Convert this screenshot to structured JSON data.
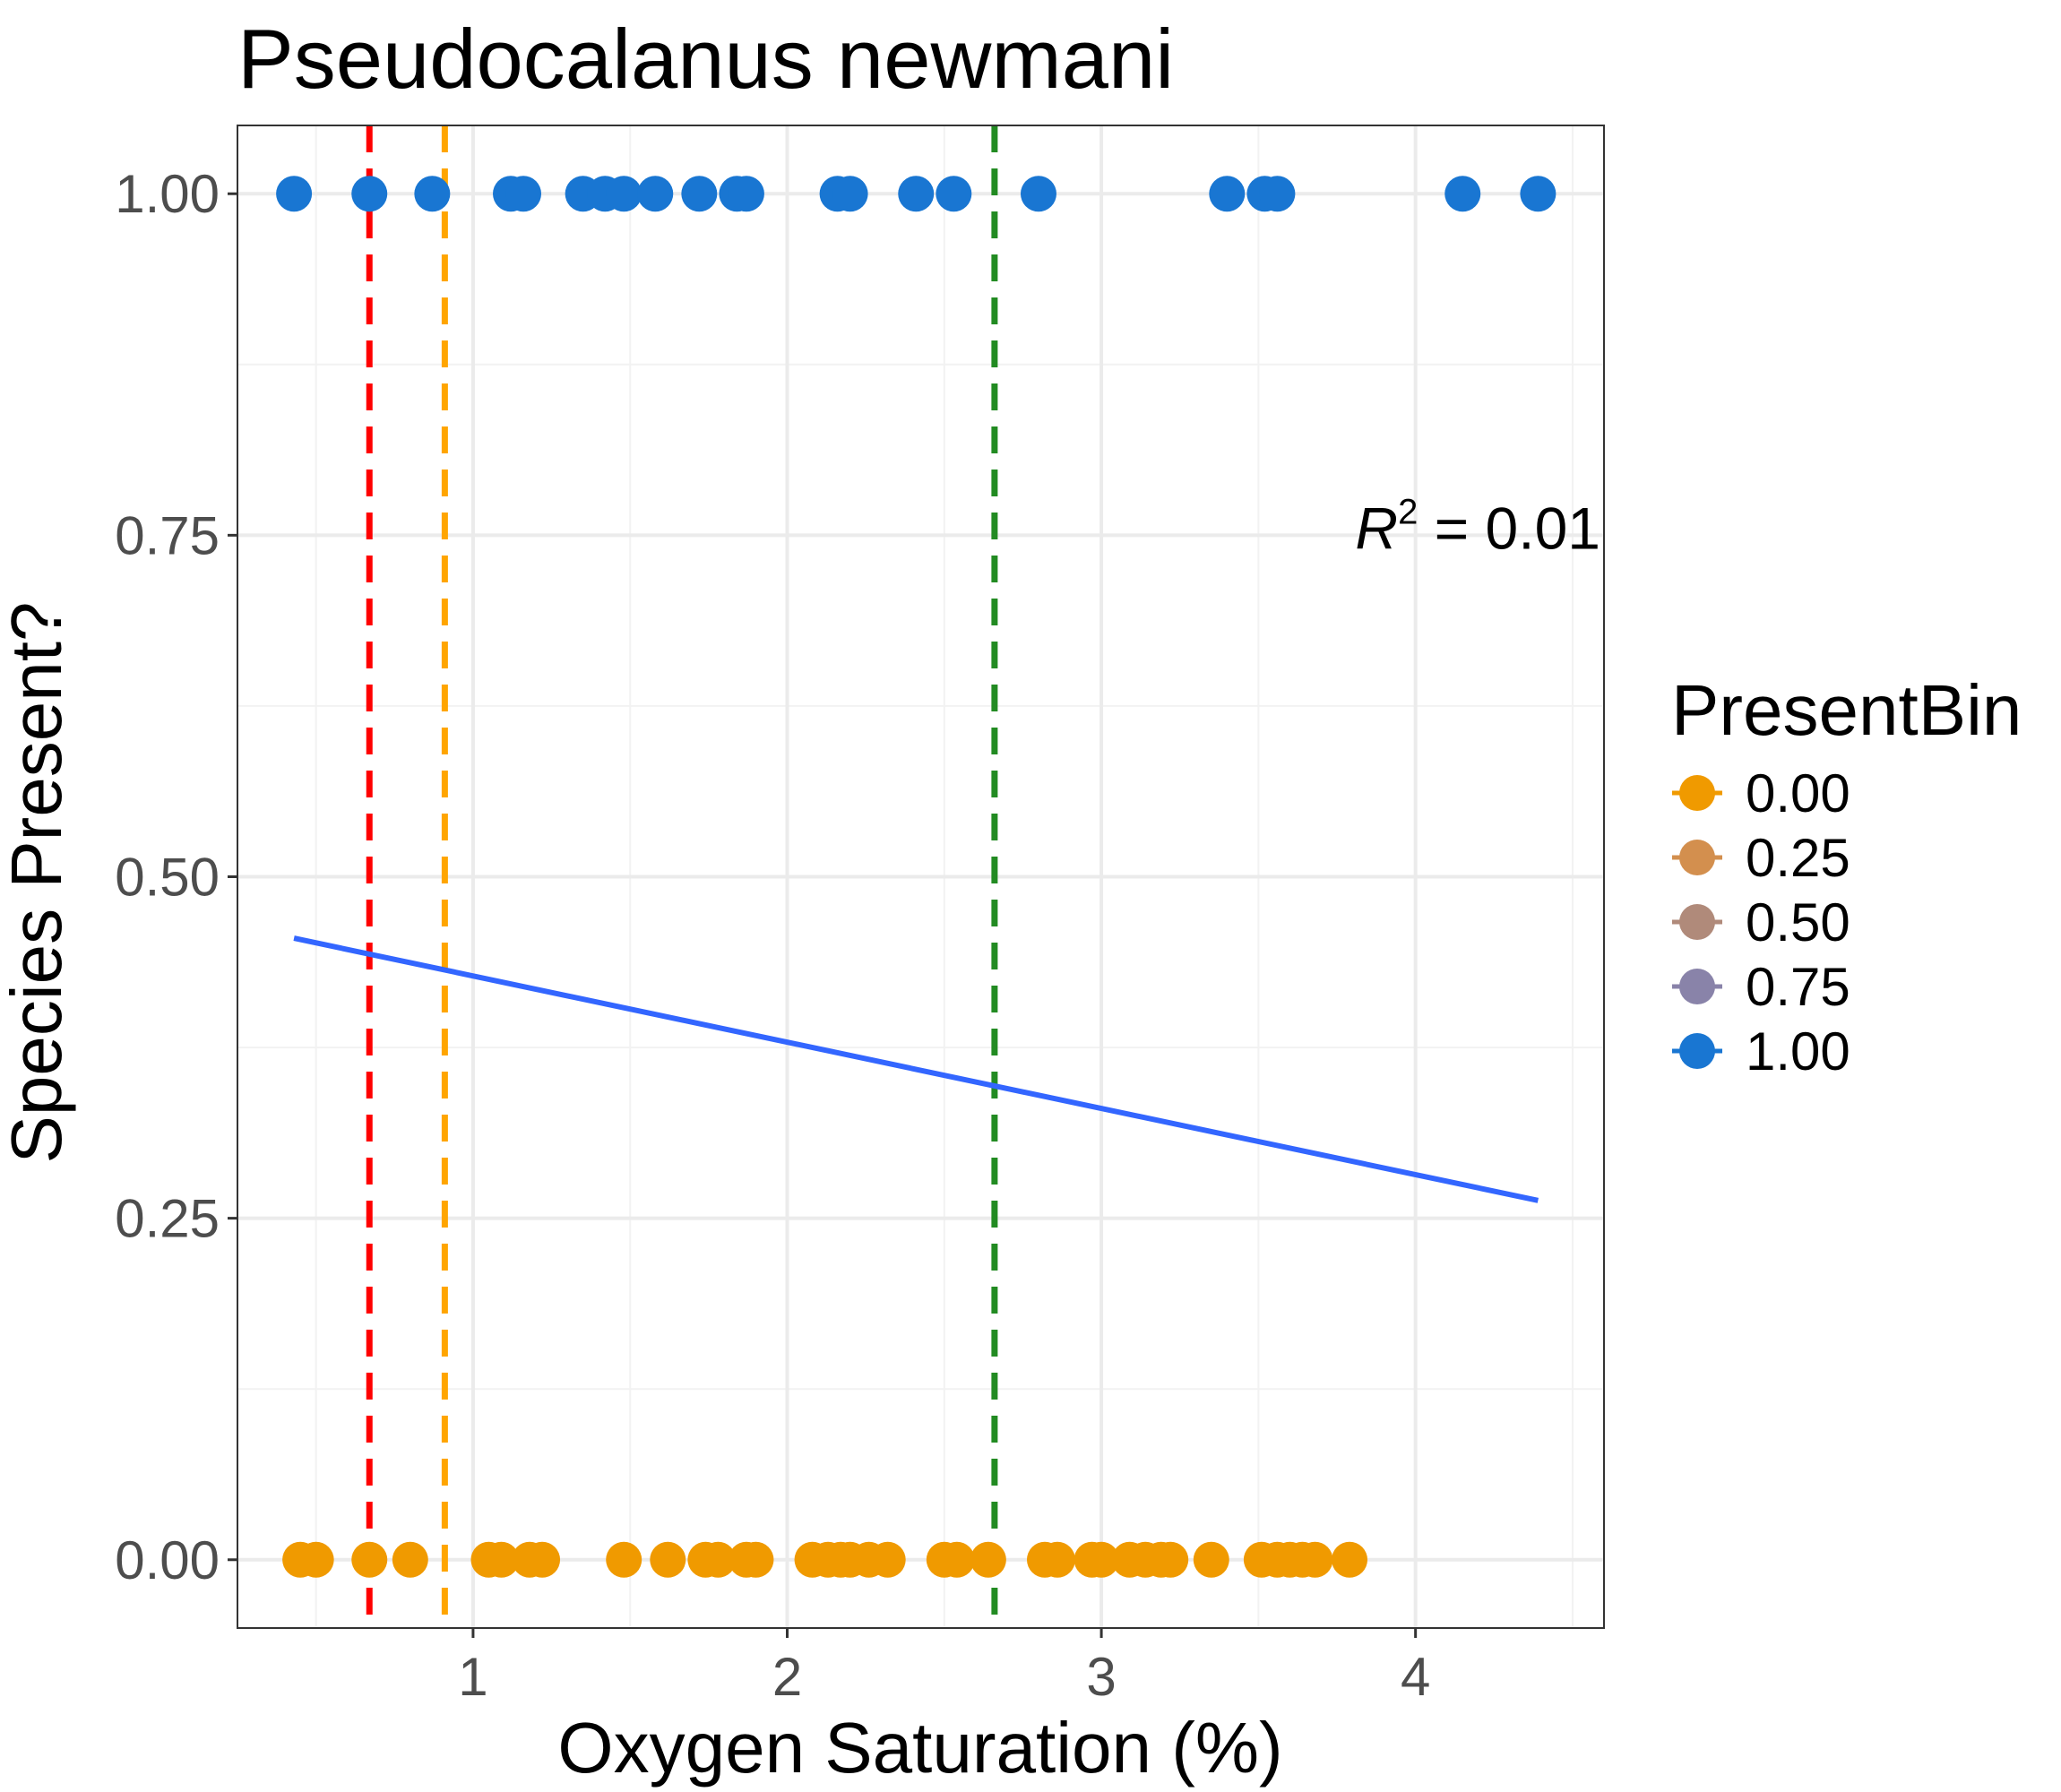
{
  "chart_data": {
    "type": "scatter",
    "title": "Pseudocalanus newmani",
    "xlabel": "Oxygen Saturation (%)",
    "ylabel": "Species Present?",
    "xlim": [
      0.25,
      4.6
    ],
    "ylim": [
      -0.05,
      1.05
    ],
    "x_ticks": [
      1,
      2,
      3,
      4
    ],
    "x_tick_labels": [
      "1",
      "2",
      "3",
      "4"
    ],
    "y_ticks": [
      0,
      0.25,
      0.5,
      0.75,
      1.0
    ],
    "y_tick_labels": [
      "0.00",
      "0.25",
      "0.50",
      "0.75",
      "1.00"
    ],
    "grid": true,
    "legend": {
      "title": "PresentBin",
      "placement": "right",
      "entries": [
        {
          "label": "0.00",
          "color": "#F09A00"
        },
        {
          "label": "0.25",
          "color": "#D38F4E"
        },
        {
          "label": "0.50",
          "color": "#B08A7A"
        },
        {
          "label": "0.75",
          "color": "#8983A9"
        },
        {
          "label": "1.00",
          "color": "#1976D2"
        }
      ]
    },
    "series": [
      {
        "name": "0.00",
        "color": "#F09A00",
        "y": 0,
        "x": [
          0.45,
          0.5,
          0.67,
          0.8,
          1.05,
          1.09,
          1.18,
          1.22,
          1.48,
          1.62,
          1.74,
          1.78,
          1.87,
          1.9,
          2.08,
          2.13,
          2.17,
          2.2,
          2.26,
          2.32,
          2.5,
          2.54,
          2.64,
          2.82,
          2.86,
          2.97,
          3.0,
          3.09,
          3.14,
          3.19,
          3.22,
          3.35,
          3.51,
          3.56,
          3.6,
          3.64,
          3.68,
          3.79
        ]
      },
      {
        "name": "1.00",
        "color": "#1976D2",
        "y": 1,
        "x": [
          0.43,
          0.67,
          0.87,
          1.12,
          1.16,
          1.35,
          1.42,
          1.48,
          1.58,
          1.72,
          1.84,
          1.87,
          2.16,
          2.2,
          2.41,
          2.53,
          2.8,
          3.4,
          3.52,
          3.56,
          4.15,
          4.39
        ]
      }
    ],
    "fit_line": {
      "color": "#3366FF",
      "x": [
        0.43,
        4.39
      ],
      "y": [
        0.455,
        0.263
      ]
    },
    "vlines": [
      {
        "x": 0.67,
        "color": "#FF0000",
        "style": "dashed"
      },
      {
        "x": 0.91,
        "color": "#FFA500",
        "style": "dashed"
      },
      {
        "x": 2.66,
        "color": "#228B22",
        "style": "dashed"
      }
    ],
    "annotation": {
      "r_symbol": "R",
      "r_superscript": "2",
      "r_value": " = 0.01",
      "x": 4.6,
      "y": 0.74
    }
  }
}
